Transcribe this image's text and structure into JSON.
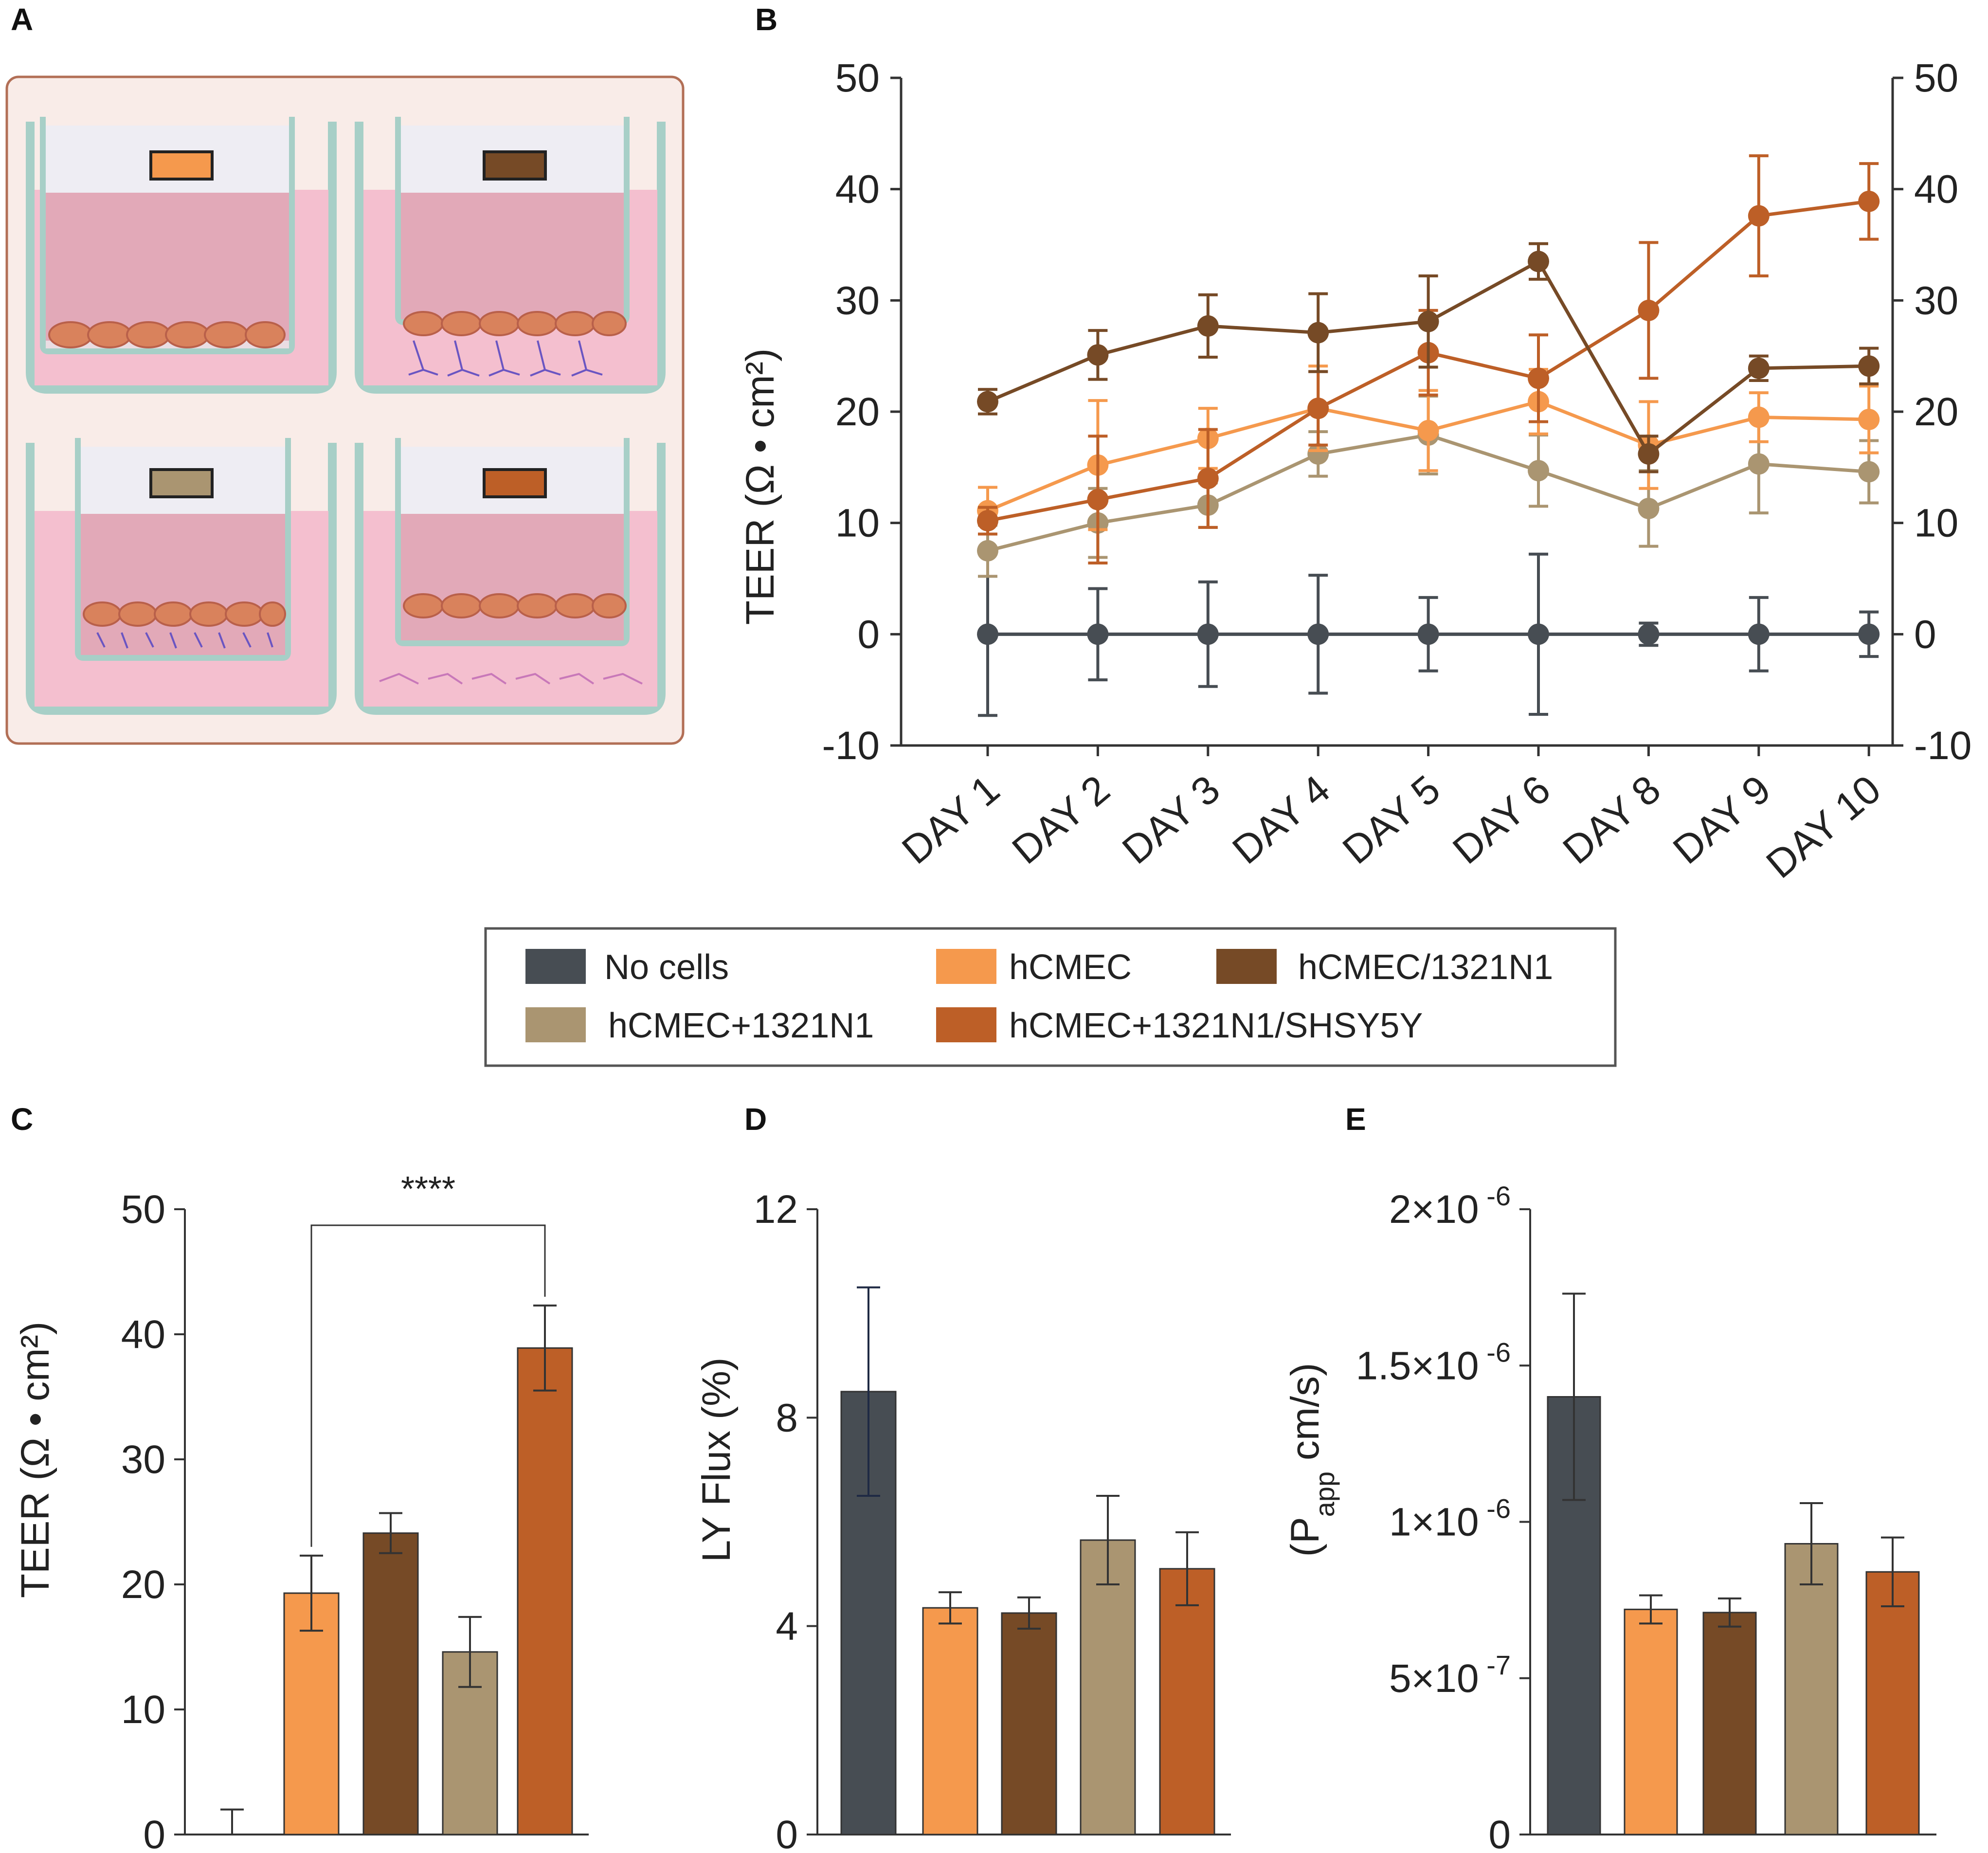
{
  "panels": {
    "A": "A",
    "B": "B",
    "C": "C",
    "D": "D",
    "E": "E"
  },
  "colors": {
    "no_cells": "#474d53",
    "hcmec": "#f5994d",
    "hcmec_1321n1": "#764a26",
    "hcmec_plus_1321n1": "#aa9571",
    "hcmec_plus_1321n1_shsy5y": "#bd5f27"
  },
  "legend": [
    {
      "label": "No cells",
      "color": "#474d53"
    },
    {
      "label": "hCMEC",
      "color": "#f5994d"
    },
    {
      "label": "hCMEC/1321N1",
      "color": "#764a26"
    },
    {
      "label": "hCMEC+1321N1",
      "color": "#aa9571"
    },
    {
      "label": "hCMEC+1321N1/SHSY5Y",
      "color": "#bd5f27"
    }
  ],
  "chart_data": [
    {
      "panel": "B",
      "type": "line",
      "title": "",
      "xlabel": "",
      "ylabel": "TEER (Ω • cm²)",
      "ylim": [
        -10,
        50
      ],
      "yticks": [
        -10,
        0,
        10,
        20,
        30,
        40,
        50
      ],
      "categories": [
        "DAY 1",
        "DAY 2",
        "DAY 3",
        "DAY 4",
        "DAY 5",
        "DAY 6",
        "DAY 8",
        "DAY 9",
        "DAY 10"
      ],
      "series": [
        {
          "name": "No cells",
          "color": "#474d53",
          "values": [
            0,
            0,
            0,
            0,
            0,
            0,
            0,
            0,
            0
          ],
          "errors": [
            7.3,
            4.1,
            4.7,
            5.3,
            3.3,
            7.2,
            1.0,
            3.3,
            2.0
          ]
        },
        {
          "name": "hCMEC+1321N1",
          "color": "#aa9571",
          "values": [
            7.5,
            10.0,
            11.6,
            16.2,
            17.9,
            14.7,
            11.3,
            15.3,
            14.6
          ],
          "errors": [
            2.3,
            3.1,
            2.0,
            2.0,
            3.5,
            3.2,
            3.4,
            4.4,
            2.8
          ]
        },
        {
          "name": "hCMEC",
          "color": "#f5994d",
          "values": [
            11.1,
            15.2,
            17.6,
            20.3,
            18.3,
            20.9,
            17.0,
            19.5,
            19.3
          ],
          "errors": [
            2.1,
            5.8,
            2.7,
            3.8,
            3.6,
            2.9,
            3.9,
            2.2,
            3.0
          ]
        },
        {
          "name": "hCMEC+1321N1/SHSY5Y",
          "color": "#bd5f27",
          "values": [
            10.2,
            12.1,
            14.0,
            20.3,
            25.3,
            23.0,
            29.1,
            37.6,
            38.9
          ],
          "errors": [
            1.2,
            5.7,
            4.4,
            3.3,
            3.8,
            3.9,
            6.1,
            5.4,
            3.4
          ]
        },
        {
          "name": "hCMEC/1321N1",
          "color": "#764a26",
          "values": [
            20.9,
            25.1,
            27.7,
            27.1,
            28.1,
            33.5,
            16.2,
            23.9,
            24.1
          ],
          "errors": [
            1.1,
            2.2,
            2.8,
            3.5,
            4.1,
            1.6,
            1.6,
            1.1,
            1.6
          ]
        }
      ]
    },
    {
      "panel": "C",
      "type": "bar",
      "title": "",
      "xlabel": "",
      "ylabel": "TEER (Ω • cm²)",
      "ylim": [
        0,
        50
      ],
      "yticks": [
        0,
        10,
        20,
        30,
        40,
        50
      ],
      "categories": [
        "No cells",
        "hCMEC",
        "hCMEC/1321N1",
        "hCMEC+1321N1",
        "hCMEC+1321N1/SHSY5Y"
      ],
      "values": [
        0,
        19.3,
        24.1,
        14.6,
        38.9
      ],
      "errors": [
        2.0,
        3.0,
        1.6,
        2.8,
        3.4
      ],
      "annotation": "****",
      "tick_labels": [
        "0",
        "10",
        "20",
        "30",
        "40",
        "50"
      ]
    },
    {
      "panel": "D",
      "type": "bar",
      "title": "",
      "xlabel": "",
      "ylabel": "LY Flux (%)",
      "ylim": [
        0,
        12
      ],
      "yticks": [
        0,
        4,
        8,
        12
      ],
      "categories": [
        "No cells",
        "hCMEC",
        "hCMEC/1321N1",
        "hCMEC+1321N1",
        "hCMEC+1321N1/SHSY5Y"
      ],
      "values": [
        8.5,
        4.35,
        4.25,
        5.65,
        5.1
      ],
      "errors": [
        2.0,
        0.3,
        0.3,
        0.85,
        0.7
      ],
      "tick_labels": [
        "0",
        "4",
        "8",
        "12"
      ]
    },
    {
      "panel": "E",
      "type": "bar",
      "title": "",
      "xlabel": "",
      "ylabel_main": "(P",
      "ylabel_sub": "app",
      "ylabel_rest": " cm/s)",
      "ylim": [
        0,
        2e-06
      ],
      "yticks": [
        0,
        5e-07,
        1e-06,
        1.5e-06,
        2e-06
      ],
      "categories": [
        "No cells",
        "hCMEC",
        "hCMEC/1321N1",
        "hCMEC+1321N1",
        "hCMEC+1321N1/SHSY5Y"
      ],
      "values": [
        1.4e-06,
        7.2e-07,
        7.1e-07,
        9.3e-07,
        8.4e-07
      ],
      "errors": [
        3.3e-07,
        4.5e-08,
        4.5e-08,
        1.3e-07,
        1.1e-07
      ],
      "tick_labels": [
        {
          "base": "0",
          "exp": ""
        },
        {
          "base": "5×10",
          "exp": "-7"
        },
        {
          "base": "1×10",
          "exp": "-6"
        },
        {
          "base": "1.5×10",
          "exp": "-6"
        },
        {
          "base": "2×10",
          "exp": "-6"
        }
      ]
    }
  ]
}
